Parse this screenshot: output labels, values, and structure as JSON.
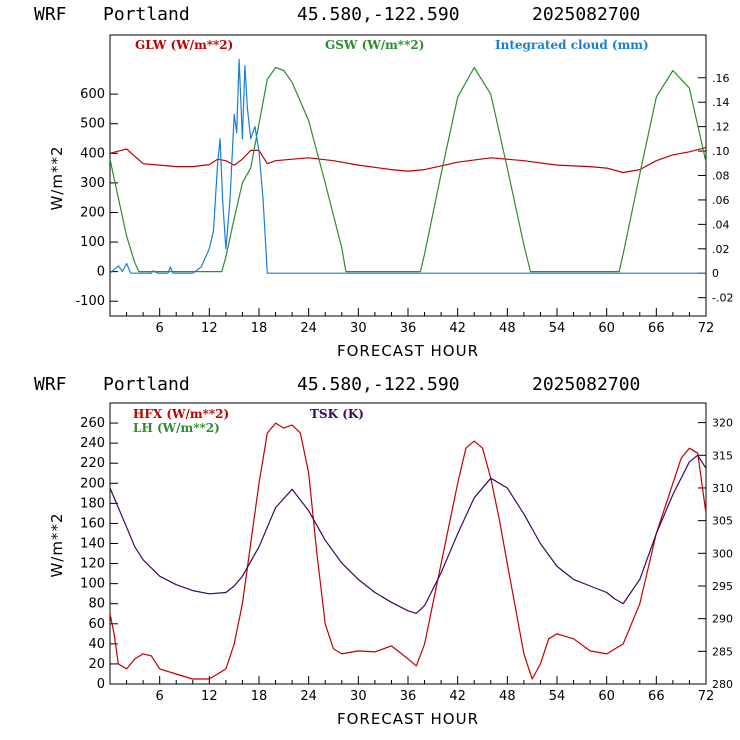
{
  "panels": [
    {
      "header": {
        "model": "WRF",
        "site": "Portland",
        "coords": "45.580,-122.590",
        "run": "2025082700"
      },
      "xlabel": "FORECAST HOUR",
      "ylabel": "W/m**2"
    },
    {
      "header": {
        "model": "WRF",
        "site": "Portland",
        "coords": "45.580,-122.590",
        "run": "2025082700"
      },
      "xlabel": "FORECAST HOUR",
      "ylabel": "W/m**2"
    }
  ],
  "colors": {
    "red": "#c00000",
    "green": "#2e8b2e",
    "blue": "#1a7fd6",
    "purple": "#3a0a5e"
  },
  "chart_data": [
    {
      "type": "line",
      "xlabel": "FORECAST HOUR",
      "ylabel": "W/m**2",
      "xlim": [
        0,
        72
      ],
      "ylim": [
        -150,
        800
      ],
      "y2lim": [
        -0.035,
        0.195
      ],
      "xticks": [
        6,
        12,
        18,
        24,
        30,
        36,
        42,
        48,
        54,
        60,
        66,
        72
      ],
      "yticks": [
        -100,
        0,
        100,
        200,
        300,
        400,
        500,
        600
      ],
      "y2ticks": [
        -0.02,
        0,
        0.02,
        0.04,
        0.06,
        0.08,
        0.1,
        0.12,
        0.14,
        0.16
      ],
      "y2ticklabels": [
        "-.02",
        "0",
        ".02",
        ".04",
        ".06",
        ".08",
        ".10",
        ".12",
        ".14",
        ".16"
      ],
      "series": [
        {
          "name": "GLW (W/m**2)",
          "color": "#c00000",
          "axis": "left",
          "x": [
            0,
            2,
            4,
            6,
            8,
            10,
            12,
            13,
            14,
            15,
            16,
            17,
            18,
            19,
            20,
            22,
            24,
            27,
            30,
            34,
            36,
            38,
            42,
            46,
            50,
            54,
            58,
            60,
            62,
            64,
            66,
            68,
            70,
            72
          ],
          "y": [
            400,
            415,
            365,
            360,
            355,
            355,
            362,
            380,
            375,
            360,
            380,
            410,
            410,
            365,
            375,
            380,
            385,
            375,
            360,
            345,
            340,
            345,
            370,
            385,
            375,
            360,
            355,
            350,
            335,
            345,
            375,
            395,
            405,
            420
          ]
        },
        {
          "name": "GSW (W/m**2)",
          "color": "#2e8b2e",
          "axis": "left",
          "x": [
            0,
            1,
            2,
            3,
            3.5,
            13.5,
            14,
            15,
            16,
            17,
            18,
            19,
            20,
            21,
            22,
            24,
            26,
            28,
            28.5,
            37.5,
            38,
            40,
            42,
            44,
            46,
            48,
            50,
            50.8,
            61.5,
            62,
            64,
            66,
            68,
            70,
            72
          ],
          "y": [
            380,
            250,
            120,
            30,
            0,
            0,
            50,
            180,
            300,
            350,
            500,
            650,
            690,
            680,
            640,
            510,
            300,
            80,
            0,
            0,
            60,
            330,
            590,
            690,
            600,
            350,
            90,
            0,
            0,
            60,
            330,
            590,
            680,
            620,
            370
          ]
        },
        {
          "name": "Integrated cloud (mm)",
          "color": "#1a7fd6",
          "axis": "right",
          "x": [
            0,
            1,
            1.5,
            2,
            2.5,
            4,
            5,
            5.2,
            5.8,
            6.5,
            7,
            7.3,
            7.6,
            8,
            10,
            11,
            12,
            12.5,
            13,
            13.3,
            13.6,
            14,
            14.5,
            15,
            15.3,
            15.6,
            16,
            16.3,
            16.6,
            17,
            17.5,
            18,
            18.5,
            19,
            72
          ],
          "y": [
            0,
            0.006,
            0.0015,
            0.008,
            0,
            0,
            0,
            0.002,
            0,
            0,
            0,
            0.005,
            0,
            0,
            0,
            0.005,
            0.02,
            0.035,
            0.09,
            0.11,
            0.06,
            0.02,
            0.06,
            0.13,
            0.115,
            0.175,
            0.11,
            0.17,
            0.135,
            0.11,
            0.12,
            0.1,
            0.06,
            0,
            0
          ]
        }
      ]
    },
    {
      "type": "line",
      "xlabel": "FORECAST HOUR",
      "ylabel": "W/m**2",
      "xlim": [
        0,
        72
      ],
      "ylim": [
        0,
        280
      ],
      "y2lim": [
        280,
        323
      ],
      "xticks": [
        6,
        12,
        18,
        24,
        30,
        36,
        42,
        48,
        54,
        60,
        66,
        72
      ],
      "yticks": [
        0,
        20,
        40,
        60,
        80,
        100,
        120,
        140,
        160,
        180,
        200,
        220,
        240,
        260
      ],
      "y2ticks": [
        280,
        285,
        290,
        295,
        300,
        305,
        310,
        315,
        320
      ],
      "series": [
        {
          "name": "HFX (W/m**2)",
          "color": "#c00000",
          "axis": "left",
          "x": [
            0,
            0.5,
            1,
            2,
            3,
            4,
            5,
            6,
            8,
            10,
            12,
            13,
            14,
            15,
            16,
            17,
            18,
            19,
            20,
            21,
            22,
            23,
            24,
            25,
            26,
            27,
            28,
            30,
            32,
            34,
            36,
            37,
            38,
            40,
            42,
            43,
            44,
            45,
            46,
            47,
            48,
            49,
            50,
            51,
            52,
            53,
            54,
            56,
            58,
            60,
            62,
            64,
            66,
            68,
            69,
            70,
            71,
            72
          ],
          "y": [
            70,
            50,
            20,
            15,
            25,
            30,
            28,
            15,
            10,
            5,
            5,
            10,
            15,
            40,
            80,
            140,
            200,
            250,
            260,
            255,
            258,
            250,
            210,
            130,
            60,
            35,
            30,
            33,
            32,
            38,
            25,
            18,
            40,
            120,
            200,
            235,
            242,
            235,
            205,
            165,
            120,
            75,
            30,
            5,
            20,
            45,
            50,
            45,
            33,
            30,
            40,
            80,
            150,
            200,
            225,
            235,
            230,
            170
          ]
        },
        {
          "name": "LH (W/m**2)",
          "color": "#2e8b2e",
          "axis": "left",
          "x": [],
          "y": []
        },
        {
          "name": "TSK (K)",
          "color": "#3a0a5e",
          "axis": "right",
          "x": [
            0,
            1,
            2,
            3,
            4,
            6,
            8,
            10,
            12,
            14,
            15,
            16,
            18,
            20,
            22,
            24,
            26,
            28,
            30,
            32,
            34,
            36,
            37,
            38,
            40,
            42,
            44,
            46,
            48,
            50,
            52,
            54,
            56,
            58,
            60,
            61,
            62,
            64,
            66,
            68,
            70,
            71,
            72
          ],
          "y": [
            310,
            307,
            304,
            301,
            299,
            296.5,
            295.2,
            294.3,
            293.8,
            294,
            295,
            296.5,
            301,
            307,
            309.8,
            306.5,
            302,
            298.5,
            296,
            294,
            292.5,
            291.2,
            290.8,
            292,
            297,
            303,
            308.5,
            311.5,
            310,
            306,
            301.5,
            298,
            296,
            295,
            294,
            293,
            292.3,
            296,
            303,
            309,
            314,
            315,
            313
          ]
        }
      ]
    }
  ]
}
